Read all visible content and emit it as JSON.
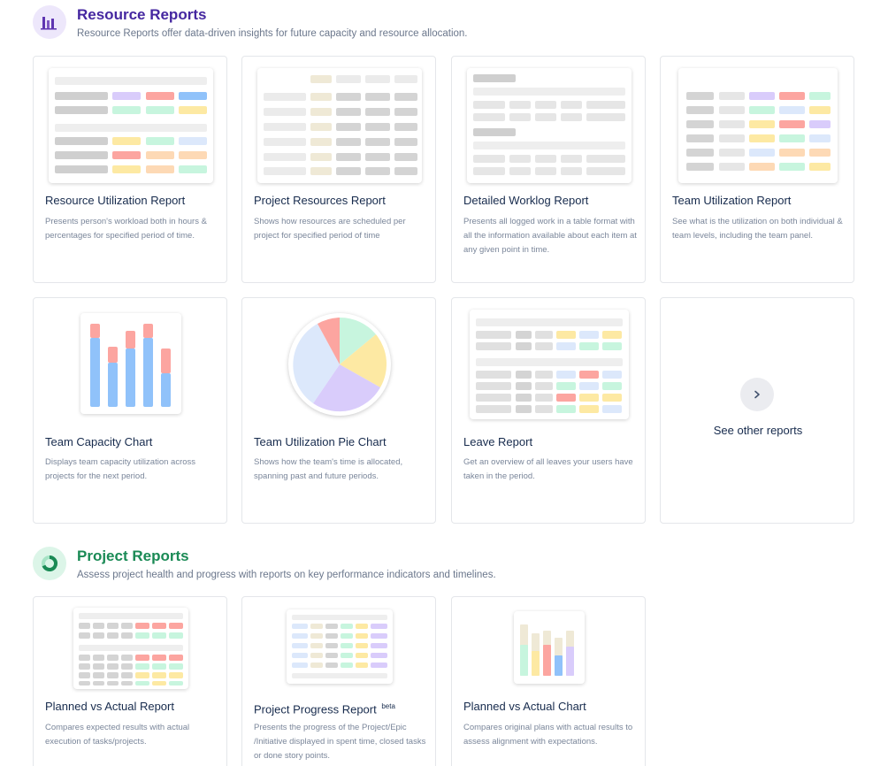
{
  "resource_section": {
    "title": "Resource Reports",
    "subtitle": "Resource Reports offer data-driven insights for future capacity and resource allocation.",
    "title_color": "#5e35b1",
    "icon": "bar-chart-icon"
  },
  "project_section": {
    "title": "Project Reports",
    "subtitle": "Assess project health and progress with reports on key performance indicators and timelines.",
    "title_color": "#1a8a55",
    "icon": "donut-chart-icon"
  },
  "resource_cards": [
    {
      "title": "Resource Utilization Report",
      "desc": "Presents person's workload both in hours & percentages for specified period of time."
    },
    {
      "title": "Project Resources Report",
      "desc": "Shows how resources are scheduled per project for specified period of time"
    },
    {
      "title": "Detailed Worklog Report",
      "desc": "Presents all logged work in a table format with all the information available about each item at any given point in time."
    },
    {
      "title": "Team Utilization Report",
      "desc": "See what is the utilization on both individual & team levels, including the team panel."
    },
    {
      "title": "Team Capacity Chart",
      "desc": "Displays team capacity utilization across projects for the next period."
    },
    {
      "title": "Team Utilization Pie Chart",
      "desc": "Shows how the team's time is allocated, spanning past and future periods."
    },
    {
      "title": "Leave Report",
      "desc": "Get an overview of all leaves your users have taken in the period."
    }
  ],
  "see_other": {
    "label": "See other reports",
    "icon": "chevron-right-icon"
  },
  "project_cards": [
    {
      "title": "Planned vs Actual Report",
      "desc": "Compares expected results with actual execution of tasks/projects.",
      "badge": ""
    },
    {
      "title": "Project Progress Report",
      "desc": "Presents the progress of the Project/Epic /Initiative displayed in spent time, closed tasks or done story points.",
      "badge": "beta"
    },
    {
      "title": "Planned vs Actual Chart",
      "desc": "Compares original plans with actual results to assess alignment with expectations.",
      "badge": ""
    }
  ],
  "colors": {
    "gray": "#d4d4d4",
    "light_gray": "#ebebeb",
    "purple": "#d9ccfb",
    "red": "#fca5a0",
    "blue": "#90c2fa",
    "mint": "#c7f5de",
    "yellow": "#fde9a3",
    "peach": "#fdd9b5",
    "light_blue": "#dce8fb",
    "beige": "#efe9d6"
  }
}
